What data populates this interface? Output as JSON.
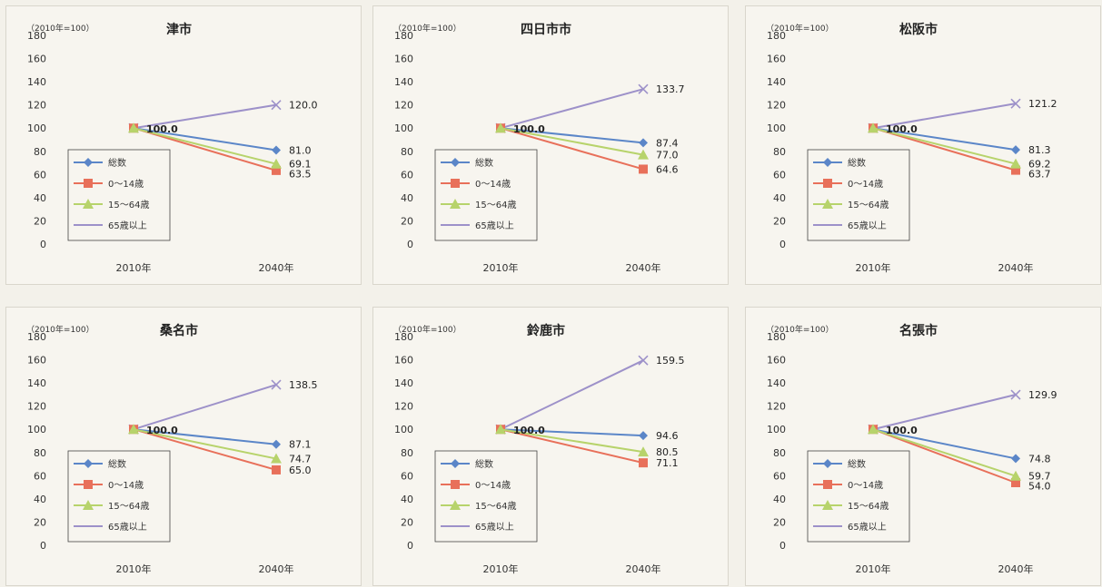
{
  "colors": {
    "total": "#5b86c8",
    "age0_14": "#e8705a",
    "age15_64": "#b7d36b",
    "age65": "#9d91c9"
  },
  "chart_data": [
    {
      "type": "line",
      "title": "津市",
      "unit_label": "（2010年=100）",
      "categories": [
        "2010年",
        "2040年"
      ],
      "ylim": [
        0,
        180
      ],
      "yticks": [
        0,
        20,
        40,
        60,
        80,
        100,
        120,
        140,
        160,
        180
      ],
      "start_label": "100.0",
      "legend_position": "bottom-left",
      "series": [
        {
          "name": "総数",
          "values": [
            100,
            81.0
          ],
          "end_label": "81.0"
        },
        {
          "name": "0～14歳",
          "values": [
            100,
            63.5
          ],
          "end_label": "63.5"
        },
        {
          "name": "15～64歳",
          "values": [
            100,
            69.1
          ],
          "end_label": "69.1"
        },
        {
          "name": "65歳以上",
          "values": [
            100,
            120.0
          ],
          "end_label": "120.0"
        }
      ]
    },
    {
      "type": "line",
      "title": "四日市市",
      "unit_label": "（2010年=100）",
      "categories": [
        "2010年",
        "2040年"
      ],
      "ylim": [
        0,
        180
      ],
      "yticks": [
        0,
        20,
        40,
        60,
        80,
        100,
        120,
        140,
        160,
        180
      ],
      "start_label": "100.0",
      "legend_position": "bottom-left",
      "series": [
        {
          "name": "総数",
          "values": [
            100,
            87.4
          ],
          "end_label": "87.4"
        },
        {
          "name": "0～14歳",
          "values": [
            100,
            64.6
          ],
          "end_label": "64.6"
        },
        {
          "name": "15～64歳",
          "values": [
            100,
            77.0
          ],
          "end_label": "77.0"
        },
        {
          "name": "65歳以上",
          "values": [
            100,
            133.7
          ],
          "end_label": "133.7"
        }
      ]
    },
    {
      "type": "line",
      "title": "松阪市",
      "unit_label": "（2010年=100）",
      "categories": [
        "2010年",
        "2040年"
      ],
      "ylim": [
        0,
        180
      ],
      "yticks": [
        0,
        20,
        40,
        60,
        80,
        100,
        120,
        140,
        160,
        180
      ],
      "start_label": "100.0",
      "legend_position": "bottom-left",
      "series": [
        {
          "name": "総数",
          "values": [
            100,
            81.3
          ],
          "end_label": "81.3"
        },
        {
          "name": "0～14歳",
          "values": [
            100,
            63.7
          ],
          "end_label": "63.7"
        },
        {
          "name": "15～64歳",
          "values": [
            100,
            69.2
          ],
          "end_label": "69.2"
        },
        {
          "name": "65歳以上",
          "values": [
            100,
            121.2
          ],
          "end_label": "121.2"
        }
      ]
    },
    {
      "type": "line",
      "title": "桑名市",
      "unit_label": "（2010年=100）",
      "categories": [
        "2010年",
        "2040年"
      ],
      "ylim": [
        0,
        180
      ],
      "yticks": [
        0,
        20,
        40,
        60,
        80,
        100,
        120,
        140,
        160,
        180
      ],
      "start_label": "100.0",
      "legend_position": "bottom-left",
      "series": [
        {
          "name": "総数",
          "values": [
            100,
            87.1
          ],
          "end_label": "87.1"
        },
        {
          "name": "0～14歳",
          "values": [
            100,
            65.0
          ],
          "end_label": "65.0"
        },
        {
          "name": "15～64歳",
          "values": [
            100,
            74.7
          ],
          "end_label": "74.7"
        },
        {
          "name": "65歳以上",
          "values": [
            100,
            138.5
          ],
          "end_label": "138.5"
        }
      ]
    },
    {
      "type": "line",
      "title": "鈴鹿市",
      "unit_label": "（2010年=100）",
      "categories": [
        "2010年",
        "2040年"
      ],
      "ylim": [
        0,
        180
      ],
      "yticks": [
        0,
        20,
        40,
        60,
        80,
        100,
        120,
        140,
        160,
        180
      ],
      "start_label": "100.0",
      "legend_position": "bottom-left",
      "series": [
        {
          "name": "総数",
          "values": [
            100,
            94.6
          ],
          "end_label": "94.6"
        },
        {
          "name": "0～14歳",
          "values": [
            100,
            71.1
          ],
          "end_label": "71.1"
        },
        {
          "name": "15～64歳",
          "values": [
            100,
            80.5
          ],
          "end_label": "80.5"
        },
        {
          "name": "65歳以上",
          "values": [
            100,
            159.5
          ],
          "end_label": "159.5"
        }
      ]
    },
    {
      "type": "line",
      "title": "名張市",
      "unit_label": "（2010年=100）",
      "categories": [
        "2010年",
        "2040年"
      ],
      "ylim": [
        0,
        180
      ],
      "yticks": [
        0,
        20,
        40,
        60,
        80,
        100,
        120,
        140,
        160,
        180
      ],
      "start_label": "100.0",
      "legend_position": "bottom-left",
      "series": [
        {
          "name": "総数",
          "values": [
            100,
            74.8
          ],
          "end_label": "74.8"
        },
        {
          "name": "0～14歳",
          "values": [
            100,
            54.0
          ],
          "end_label": "54.0"
        },
        {
          "name": "15～64歳",
          "values": [
            100,
            59.7
          ],
          "end_label": "59.7"
        },
        {
          "name": "65歳以上",
          "values": [
            100,
            129.9
          ],
          "end_label": "129.9"
        }
      ]
    }
  ]
}
